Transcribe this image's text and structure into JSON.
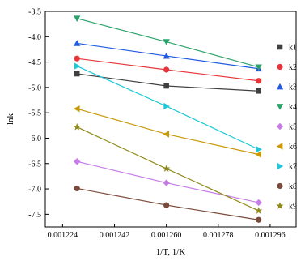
{
  "chart_data": {
    "type": "scatter",
    "title": "",
    "xlabel": "1/T, 1/K",
    "ylabel": "lnk",
    "xlim": [
      0.001218,
      0.001305
    ],
    "ylim": [
      -7.75,
      -3.5
    ],
    "xticks": [
      0.001224,
      0.001242,
      0.00126,
      0.001278,
      0.001296
    ],
    "xtick_labels": [
      "0.001224",
      "0.001242",
      "0.001260",
      "0.001278",
      "0.001296"
    ],
    "yticks": [
      -3.5,
      -4.0,
      -4.5,
      -5.0,
      -5.5,
      -6.0,
      -6.5,
      -7.0,
      -7.5
    ],
    "ytick_labels": [
      "-3.5",
      "-4.0",
      "-4.5",
      "-5.0",
      "-5.5",
      "-6.0",
      "-6.5",
      "-7.0",
      "-7.5"
    ],
    "grid": false,
    "legend_position": "right",
    "x": [
      0.001229,
      0.00126,
      0.001292
    ],
    "series": [
      {
        "name": "k1",
        "marker": "square",
        "color": "#404040",
        "values": [
          -4.73,
          -4.97,
          -5.07
        ]
      },
      {
        "name": "k2",
        "marker": "circle",
        "color": "#e8353a",
        "values": [
          -4.43,
          -4.65,
          -4.87
        ]
      },
      {
        "name": "k3",
        "marker": "triangle-up",
        "color": "#1f5be0",
        "values": [
          -4.13,
          -4.38,
          -4.63
        ]
      },
      {
        "name": "k4",
        "marker": "triangle-down",
        "color": "#2ca36a",
        "values": [
          -3.64,
          -4.1,
          -4.6
        ]
      },
      {
        "name": "k5",
        "marker": "diamond",
        "color": "#c77ce8",
        "values": [
          -6.46,
          -6.88,
          -7.27
        ]
      },
      {
        "name": "k6",
        "marker": "triangle-left",
        "color": "#c89a0a",
        "values": [
          -5.42,
          -5.92,
          -6.32
        ]
      },
      {
        "name": "k7",
        "marker": "triangle-right",
        "color": "#1ec8d6",
        "values": [
          -4.58,
          -5.37,
          -6.22
        ]
      },
      {
        "name": "k8",
        "marker": "circle",
        "color": "#7a4a3a",
        "values": [
          -6.99,
          -7.32,
          -7.61
        ]
      },
      {
        "name": "k9",
        "marker": "star",
        "color": "#8f8a1a",
        "values": [
          -5.78,
          -6.6,
          -7.43
        ]
      }
    ]
  }
}
